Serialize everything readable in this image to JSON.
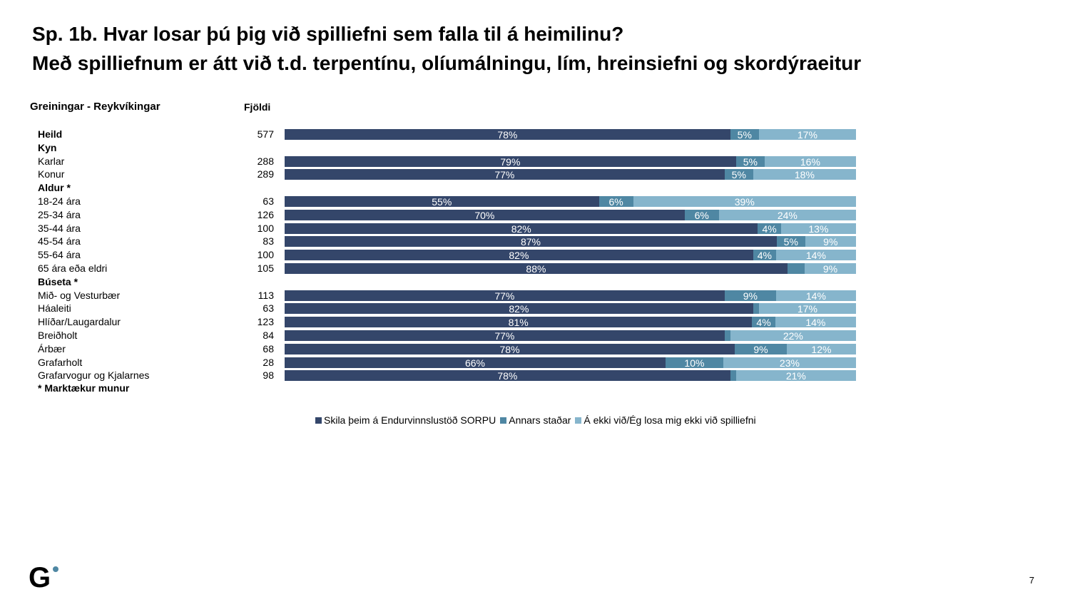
{
  "title_line1": "Sp. 1b. Hvar losar þú þig við spilliefni sem falla til á heimilinu?",
  "title_line2": "Með spilliefnum er átt við t.d. terpentínu, olíumálningu, lím, hreinsiefni og skordýraeitur",
  "page_number": "7",
  "logo_text": "G",
  "chart_data": {
    "type": "bar",
    "stacked": true,
    "orientation": "horizontal",
    "section_header": "Greiningar - Reykvíkingar",
    "count_header": "Fjöldi",
    "footnote": "* Marktækur munur",
    "series": [
      {
        "name": "Skila þeim á Endurvinnslustöð SORPU",
        "color": "#34466a"
      },
      {
        "name": "Annars staðar",
        "color": "#4f87a3"
      },
      {
        "name": "Á ekki við/Ég losa mig ekki við spilliefni",
        "color": "#86b5cc"
      }
    ],
    "rows": [
      {
        "label": "Heild",
        "bold": true,
        "n": "577",
        "values": [
          78,
          5,
          17
        ],
        "show": [
          1,
          1,
          1
        ]
      },
      {
        "label": "Kyn",
        "heading": true
      },
      {
        "label": "Karlar",
        "n": "288",
        "values": [
          79,
          5,
          16
        ],
        "show": [
          1,
          1,
          1
        ]
      },
      {
        "label": "Konur",
        "n": "289",
        "values": [
          77,
          5,
          18
        ],
        "show": [
          1,
          1,
          1
        ]
      },
      {
        "label": "Aldur *",
        "heading": true
      },
      {
        "label": "18-24 ára",
        "n": "63",
        "values": [
          55,
          6,
          39
        ],
        "show": [
          1,
          1,
          1
        ]
      },
      {
        "label": "25-34 ára",
        "n": "126",
        "values": [
          70,
          6,
          24
        ],
        "show": [
          1,
          1,
          1
        ]
      },
      {
        "label": "35-44 ára",
        "n": "100",
        "values": [
          82,
          4,
          13
        ],
        "show": [
          1,
          1,
          1
        ]
      },
      {
        "label": "45-54 ára",
        "n": "83",
        "values": [
          87,
          5,
          9
        ],
        "show": [
          1,
          1,
          1
        ]
      },
      {
        "label": "55-64 ára",
        "n": "100",
        "values": [
          82,
          4,
          14
        ],
        "show": [
          1,
          1,
          1
        ]
      },
      {
        "label": "65 ára eða eldri",
        "n": "105",
        "values": [
          88,
          3,
          9
        ],
        "show": [
          1,
          0,
          1
        ]
      },
      {
        "label": "Búseta *",
        "heading": true
      },
      {
        "label": "Mið- og Vesturbær",
        "n": "113",
        "values": [
          77,
          9,
          14
        ],
        "show": [
          1,
          1,
          1
        ]
      },
      {
        "label": "Háaleiti",
        "n": "63",
        "values": [
          82,
          1,
          17
        ],
        "show": [
          1,
          0,
          1
        ]
      },
      {
        "label": "Hlíðar/Laugardalur",
        "n": "123",
        "values": [
          81,
          4,
          14
        ],
        "show": [
          1,
          1,
          1
        ]
      },
      {
        "label": "Breiðholt",
        "n": "84",
        "values": [
          77,
          1,
          22
        ],
        "show": [
          1,
          0,
          1
        ]
      },
      {
        "label": "Árbær",
        "n": "68",
        "values": [
          78,
          9,
          12
        ],
        "show": [
          1,
          1,
          1
        ]
      },
      {
        "label": "Grafarholt",
        "n": "28",
        "values": [
          66,
          10,
          23
        ],
        "show": [
          1,
          1,
          1
        ]
      },
      {
        "label": "Grafarvogur og Kjalarnes",
        "n": "98",
        "values": [
          78,
          1,
          21
        ],
        "show": [
          1,
          0,
          1
        ]
      }
    ],
    "xlim": [
      0,
      100
    ]
  }
}
